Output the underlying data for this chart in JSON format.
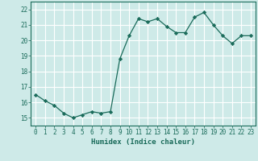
{
  "x": [
    0,
    1,
    2,
    3,
    4,
    5,
    6,
    7,
    8,
    9,
    10,
    11,
    12,
    13,
    14,
    15,
    16,
    17,
    18,
    19,
    20,
    21,
    22,
    23
  ],
  "y": [
    16.5,
    16.1,
    15.8,
    15.3,
    15.0,
    15.2,
    15.4,
    15.3,
    15.4,
    18.8,
    20.3,
    21.4,
    21.2,
    21.4,
    20.9,
    20.5,
    20.5,
    21.5,
    21.8,
    21.0,
    20.3,
    19.8,
    20.3,
    20.3
  ],
  "xlabel": "Humidex (Indice chaleur)",
  "xlim": [
    -0.5,
    23.5
  ],
  "ylim": [
    14.5,
    22.5
  ],
  "yticks": [
    15,
    16,
    17,
    18,
    19,
    20,
    21,
    22
  ],
  "xticks": [
    0,
    1,
    2,
    3,
    4,
    5,
    6,
    7,
    8,
    9,
    10,
    11,
    12,
    13,
    14,
    15,
    16,
    17,
    18,
    19,
    20,
    21,
    22,
    23
  ],
  "line_color": "#1a6b5a",
  "marker_color": "#1a6b5a",
  "bg_color": "#ceeae8",
  "grid_color": "#ffffff",
  "axis_color": "#1a6b5a",
  "text_color": "#1a6b5a",
  "label_fontsize": 6.5,
  "tick_fontsize": 5.5
}
